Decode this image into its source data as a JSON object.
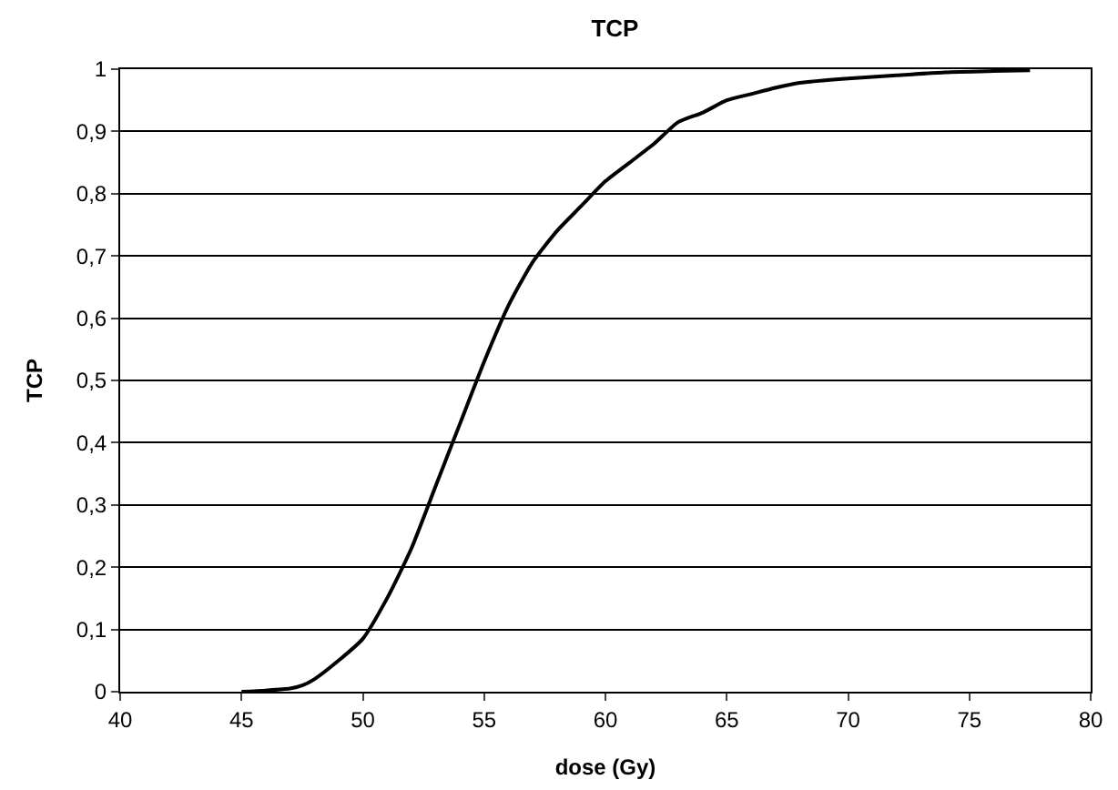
{
  "chart_data": {
    "type": "line",
    "title": "TCP",
    "xlabel": "dose (Gy)",
    "ylabel": "TCP",
    "x": [
      45,
      46,
      47,
      47.5,
      48,
      49,
      50,
      51,
      52,
      53,
      54,
      55,
      56,
      57,
      58,
      59,
      60,
      61,
      62,
      63,
      64,
      65,
      66,
      67,
      68,
      70,
      72,
      74,
      76,
      77.5
    ],
    "series": [
      {
        "color": "#000000",
        "values": [
          0,
          0.002,
          0.005,
          0.01,
          0.02,
          0.05,
          0.085,
          0.15,
          0.23,
          0.33,
          0.43,
          0.53,
          0.62,
          0.69,
          0.74,
          0.78,
          0.82,
          0.85,
          0.88,
          0.915,
          0.93,
          0.95,
          0.96,
          0.97,
          0.978,
          0.985,
          0.99,
          0.995,
          0.997,
          0.998
        ]
      }
    ],
    "xlim": [
      40,
      80
    ],
    "xticks": [
      40,
      45,
      50,
      55,
      60,
      65,
      70,
      75,
      80
    ],
    "ylim": [
      0,
      1
    ],
    "yticks": [
      0,
      {
        "value": 0.1,
        "label": "0,1"
      },
      {
        "value": 0.2,
        "label": "0,2"
      },
      {
        "value": 0.3,
        "label": "0,3"
      },
      {
        "value": 0.4,
        "label": "0,4"
      },
      {
        "value": 0.5,
        "label": "0,5"
      },
      {
        "value": 0.6,
        "label": "0,6"
      },
      {
        "value": 0.7,
        "label": "0,7"
      },
      {
        "value": 0.8,
        "label": "0,8"
      },
      {
        "value": 0.9,
        "label": "0,9"
      },
      1
    ],
    "grid": "y",
    "legend": false,
    "marker": "none",
    "line_style": "solid"
  }
}
